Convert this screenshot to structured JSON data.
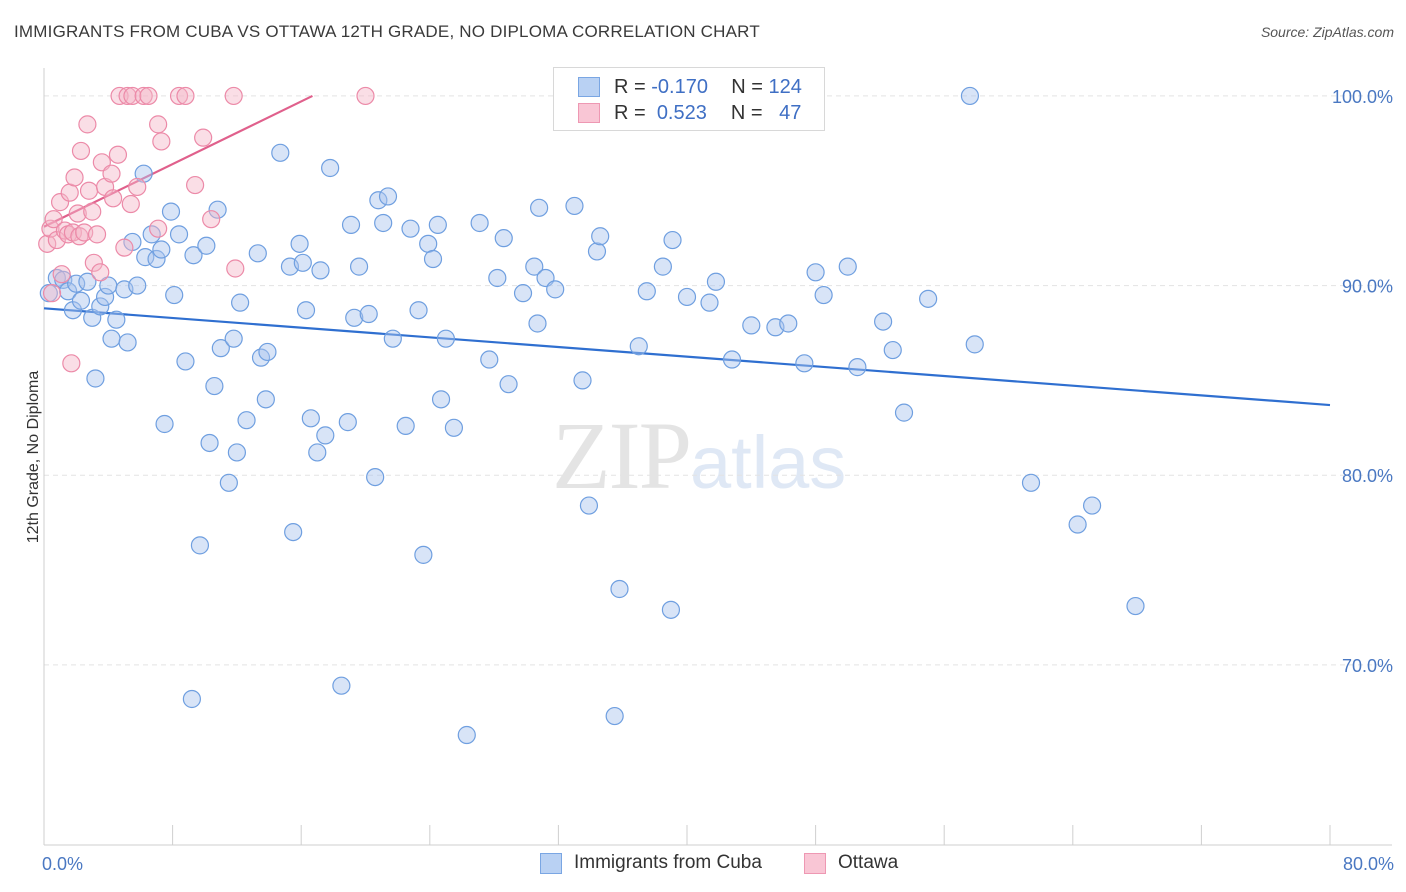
{
  "header": {
    "title": "IMMIGRANTS FROM CUBA VS OTTAWA 12TH GRADE, NO DIPLOMA CORRELATION CHART",
    "source_prefix": "Source: ",
    "source_name": "ZipAtlas.com"
  },
  "watermark": {
    "zip": "ZIP",
    "atlas": "atlas"
  },
  "legend": {
    "rows": [
      {
        "r_label": "R =",
        "r_value": "-0.170",
        "n_label": "N =",
        "n_value": "124",
        "color": "#a8c4ee"
      },
      {
        "r_label": "R =",
        "r_value": "0.523",
        "n_label": "N =",
        "n_value": "47",
        "color": "#f5b5c8"
      }
    ]
  },
  "chart_data": {
    "type": "scatter",
    "ylabel": "12th Grade, No Diploma",
    "xlim": [
      0,
      80
    ],
    "ylim": [
      60.5,
      102
    ],
    "x_tick_labels": [
      "0.0%",
      "80.0%"
    ],
    "y_ticks": [
      70,
      80,
      90,
      100
    ],
    "y_tick_labels": [
      "70.0%",
      "80.0%",
      "90.0%",
      "100.0%"
    ],
    "grid": true,
    "series": [
      {
        "name": "Immigrants from Cuba",
        "color": "#a8c4ee",
        "stroke": "#6f9fe0",
        "trend_color": "#2f6fd0",
        "trend": [
          [
            0,
            88.8
          ],
          [
            80,
            83.7
          ]
        ],
        "points": [
          [
            0.3,
            89.6
          ],
          [
            0.8,
            90.4
          ],
          [
            1.2,
            90.3
          ],
          [
            1.5,
            89.7
          ],
          [
            1.8,
            88.7
          ],
          [
            2.0,
            90.1
          ],
          [
            2.3,
            89.2
          ],
          [
            2.7,
            90.2
          ],
          [
            3.0,
            88.3
          ],
          [
            3.2,
            85.1
          ],
          [
            3.5,
            88.9
          ],
          [
            3.8,
            89.4
          ],
          [
            4.0,
            90.0
          ],
          [
            4.2,
            87.2
          ],
          [
            4.5,
            88.2
          ],
          [
            5.0,
            89.8
          ],
          [
            5.2,
            87.0
          ],
          [
            5.5,
            92.3
          ],
          [
            5.8,
            90.0
          ],
          [
            6.2,
            95.9
          ],
          [
            6.3,
            91.5
          ],
          [
            6.7,
            92.7
          ],
          [
            7.0,
            91.4
          ],
          [
            7.3,
            91.9
          ],
          [
            7.5,
            82.7
          ],
          [
            7.9,
            93.9
          ],
          [
            8.1,
            89.5
          ],
          [
            8.4,
            92.7
          ],
          [
            8.8,
            86.0
          ],
          [
            9.2,
            68.2
          ],
          [
            9.3,
            91.6
          ],
          [
            9.7,
            76.3
          ],
          [
            10.1,
            92.1
          ],
          [
            10.3,
            81.7
          ],
          [
            10.6,
            84.7
          ],
          [
            10.8,
            94.0
          ],
          [
            11.0,
            86.7
          ],
          [
            11.5,
            79.6
          ],
          [
            11.8,
            87.2
          ],
          [
            12.0,
            81.2
          ],
          [
            12.2,
            89.1
          ],
          [
            12.6,
            82.9
          ],
          [
            13.3,
            91.7
          ],
          [
            13.5,
            86.2
          ],
          [
            13.8,
            84.0
          ],
          [
            13.9,
            86.5
          ],
          [
            14.7,
            97.0
          ],
          [
            15.3,
            91.0
          ],
          [
            15.5,
            77.0
          ],
          [
            15.9,
            92.2
          ],
          [
            16.1,
            91.2
          ],
          [
            16.3,
            88.7
          ],
          [
            16.6,
            83.0
          ],
          [
            17.0,
            81.2
          ],
          [
            17.2,
            90.8
          ],
          [
            17.5,
            82.1
          ],
          [
            17.8,
            96.2
          ],
          [
            18.5,
            68.9
          ],
          [
            18.9,
            82.8
          ],
          [
            19.1,
            93.2
          ],
          [
            19.3,
            88.3
          ],
          [
            19.6,
            91.0
          ],
          [
            20.2,
            88.5
          ],
          [
            20.6,
            79.9
          ],
          [
            20.8,
            94.5
          ],
          [
            21.1,
            93.3
          ],
          [
            21.4,
            94.7
          ],
          [
            21.7,
            87.2
          ],
          [
            22.5,
            82.6
          ],
          [
            22.8,
            93.0
          ],
          [
            23.3,
            88.7
          ],
          [
            23.6,
            75.8
          ],
          [
            23.9,
            92.2
          ],
          [
            24.2,
            91.4
          ],
          [
            24.5,
            93.2
          ],
          [
            24.7,
            84.0
          ],
          [
            25.0,
            87.2
          ],
          [
            25.5,
            82.5
          ],
          [
            26.3,
            66.3
          ],
          [
            27.1,
            93.3
          ],
          [
            27.7,
            86.1
          ],
          [
            28.2,
            90.4
          ],
          [
            28.6,
            92.5
          ],
          [
            28.9,
            84.8
          ],
          [
            29.8,
            89.6
          ],
          [
            30.5,
            91.0
          ],
          [
            30.7,
            88.0
          ],
          [
            30.8,
            94.1
          ],
          [
            31.2,
            90.4
          ],
          [
            31.8,
            89.8
          ],
          [
            33.0,
            94.2
          ],
          [
            33.5,
            85.0
          ],
          [
            33.9,
            78.4
          ],
          [
            34.4,
            91.8
          ],
          [
            34.6,
            92.6
          ],
          [
            35.5,
            67.3
          ],
          [
            35.8,
            74.0
          ],
          [
            37.0,
            86.8
          ],
          [
            37.5,
            89.7
          ],
          [
            38.5,
            91.0
          ],
          [
            39.0,
            72.9
          ],
          [
            39.1,
            92.4
          ],
          [
            40.0,
            89.4
          ],
          [
            41.4,
            89.1
          ],
          [
            41.8,
            90.2
          ],
          [
            42.8,
            86.1
          ],
          [
            44.0,
            87.9
          ],
          [
            45.5,
            87.8
          ],
          [
            46.3,
            88.0
          ],
          [
            47.3,
            85.9
          ],
          [
            48.0,
            90.7
          ],
          [
            48.5,
            89.5
          ],
          [
            50.0,
            91.0
          ],
          [
            50.6,
            85.7
          ],
          [
            52.2,
            88.1
          ],
          [
            52.8,
            86.6
          ],
          [
            53.5,
            83.3
          ],
          [
            55.0,
            89.3
          ],
          [
            57.6,
            100.0
          ],
          [
            57.9,
            86.9
          ],
          [
            61.4,
            79.6
          ],
          [
            64.3,
            77.4
          ],
          [
            65.2,
            78.4
          ],
          [
            67.9,
            73.1
          ]
        ]
      },
      {
        "name": "Ottawa",
        "color": "#f5b5c8",
        "stroke": "#ec8aa8",
        "trend_color": "#e0608c",
        "trend": [
          [
            0,
            93.1
          ],
          [
            16.7,
            100.0
          ]
        ],
        "points": [
          [
            0.2,
            92.2
          ],
          [
            0.4,
            93.0
          ],
          [
            0.5,
            89.6
          ],
          [
            0.6,
            93.5
          ],
          [
            0.8,
            92.4
          ],
          [
            1.0,
            94.4
          ],
          [
            1.1,
            90.6
          ],
          [
            1.3,
            92.9
          ],
          [
            1.5,
            92.7
          ],
          [
            1.6,
            94.9
          ],
          [
            1.7,
            85.9
          ],
          [
            1.8,
            92.8
          ],
          [
            1.9,
            95.7
          ],
          [
            2.1,
            93.8
          ],
          [
            2.2,
            92.6
          ],
          [
            2.3,
            97.1
          ],
          [
            2.5,
            92.8
          ],
          [
            2.7,
            98.5
          ],
          [
            2.8,
            95.0
          ],
          [
            3.0,
            93.9
          ],
          [
            3.1,
            91.2
          ],
          [
            3.3,
            92.7
          ],
          [
            3.5,
            90.7
          ],
          [
            3.6,
            96.5
          ],
          [
            3.8,
            95.2
          ],
          [
            4.2,
            95.9
          ],
          [
            4.3,
            94.6
          ],
          [
            4.6,
            96.9
          ],
          [
            4.7,
            100.0
          ],
          [
            5.0,
            92.0
          ],
          [
            5.2,
            100.0
          ],
          [
            5.4,
            94.3
          ],
          [
            5.5,
            100.0
          ],
          [
            5.8,
            95.2
          ],
          [
            6.2,
            100.0
          ],
          [
            6.5,
            100.0
          ],
          [
            7.1,
            93.0
          ],
          [
            7.1,
            98.5
          ],
          [
            7.3,
            97.6
          ],
          [
            8.4,
            100.0
          ],
          [
            8.8,
            100.0
          ],
          [
            9.4,
            95.3
          ],
          [
            9.9,
            97.8
          ],
          [
            10.4,
            93.5
          ],
          [
            11.8,
            100.0
          ],
          [
            11.9,
            90.9
          ],
          [
            20.0,
            100.0
          ]
        ]
      }
    ]
  }
}
